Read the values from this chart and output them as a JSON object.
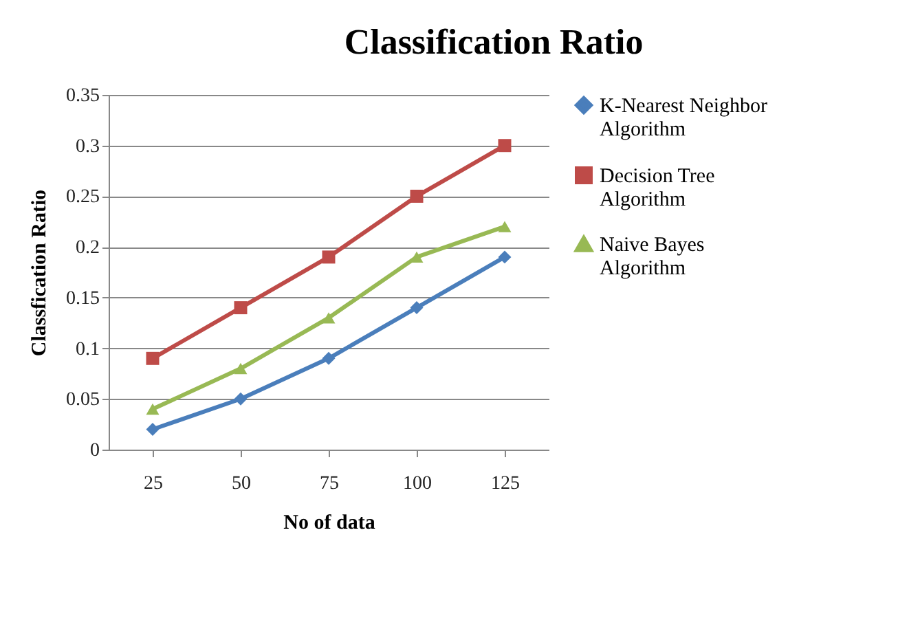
{
  "chart_data": {
    "type": "line",
    "title": "Classification Ratio",
    "xlabel": "No of data",
    "ylabel": "Classfication Ratio",
    "categories": [
      "25",
      "50",
      "75",
      "100",
      "125"
    ],
    "series": [
      {
        "name": "K-Nearest Neighbor Algorithm",
        "color": "#4a7ebb",
        "marker": "diamond",
        "values": [
          0.02,
          0.05,
          0.09,
          0.14,
          0.19
        ]
      },
      {
        "name": "Decision Tree Algorithm",
        "color": "#be4b48",
        "marker": "square",
        "values": [
          0.09,
          0.14,
          0.19,
          0.25,
          0.3
        ]
      },
      {
        "name": "Naive Bayes Algorithm",
        "color": "#98b954",
        "marker": "triangle",
        "values": [
          0.04,
          0.08,
          0.13,
          0.19,
          0.22
        ]
      }
    ],
    "ylim": [
      0,
      0.35
    ],
    "yticks": [
      0,
      0.05,
      0.1,
      0.15,
      0.2,
      0.25,
      0.3,
      0.35
    ],
    "grid": "y",
    "legend": "right",
    "line_style": "solid"
  }
}
